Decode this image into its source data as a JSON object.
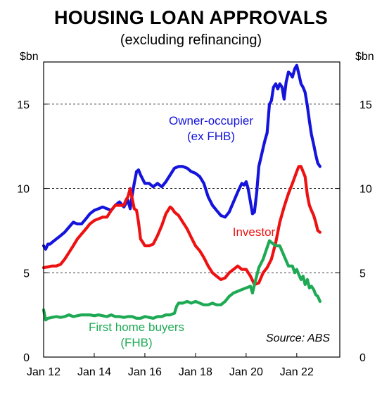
{
  "title": "HOUSING LOAN APPROVALS",
  "subtitle": "(excluding refinancing)",
  "unit_left": "$bn",
  "unit_right": "$bn",
  "source": "Source: ABS",
  "colors": {
    "owner": "#1414dc",
    "investor": "#ee1111",
    "fhb": "#1eaa55",
    "grid": "#000000"
  },
  "chart_data": {
    "type": "line",
    "title": "HOUSING LOAN APPROVALS",
    "subtitle": "(excluding refinancing)",
    "ylabel": "$bn",
    "ylim": [
      0,
      17.5
    ],
    "yticks": [
      0,
      5,
      10,
      15
    ],
    "xlim": [
      2012.0,
      2023.7
    ],
    "xticks": [
      {
        "label": "Jan 12",
        "x": 2012.0
      },
      {
        "label": "Jan 14",
        "x": 2014.0
      },
      {
        "label": "Jan 16",
        "x": 2016.0
      },
      {
        "label": "Jan 18",
        "x": 2018.0
      },
      {
        "label": "Jan 20",
        "x": 2020.0
      },
      {
        "label": "Jan 22",
        "x": 2022.0
      }
    ],
    "grid": "horizontal dashed",
    "series": [
      {
        "name": "Owner-occupier (ex FHB)",
        "label_lines": [
          "Owner-occupier",
          "(ex FHB)"
        ],
        "color": "#1414dc",
        "points": [
          [
            2012.0,
            6.6
          ],
          [
            2012.08,
            6.4
          ],
          [
            2012.17,
            6.7
          ],
          [
            2012.25,
            6.7
          ],
          [
            2012.33,
            6.8
          ],
          [
            2012.5,
            7.0
          ],
          [
            2012.67,
            7.2
          ],
          [
            2012.83,
            7.4
          ],
          [
            2013.0,
            7.7
          ],
          [
            2013.17,
            8.0
          ],
          [
            2013.33,
            7.9
          ],
          [
            2013.5,
            7.9
          ],
          [
            2013.67,
            8.2
          ],
          [
            2013.83,
            8.5
          ],
          [
            2014.0,
            8.7
          ],
          [
            2014.17,
            8.8
          ],
          [
            2014.33,
            8.9
          ],
          [
            2014.5,
            8.8
          ],
          [
            2014.67,
            8.7
          ],
          [
            2014.83,
            9.0
          ],
          [
            2015.0,
            9.2
          ],
          [
            2015.17,
            8.9
          ],
          [
            2015.33,
            9.3
          ],
          [
            2015.42,
            8.8
          ],
          [
            2015.5,
            9.6
          ],
          [
            2015.58,
            10.3
          ],
          [
            2015.67,
            11.0
          ],
          [
            2015.75,
            11.1
          ],
          [
            2015.83,
            10.8
          ],
          [
            2016.0,
            10.3
          ],
          [
            2016.17,
            10.3
          ],
          [
            2016.33,
            10.1
          ],
          [
            2016.5,
            10.3
          ],
          [
            2016.67,
            10.1
          ],
          [
            2016.83,
            10.4
          ],
          [
            2017.0,
            10.8
          ],
          [
            2017.17,
            11.2
          ],
          [
            2017.33,
            11.3
          ],
          [
            2017.5,
            11.3
          ],
          [
            2017.67,
            11.2
          ],
          [
            2017.83,
            11.0
          ],
          [
            2018.0,
            10.9
          ],
          [
            2018.17,
            10.7
          ],
          [
            2018.33,
            10.3
          ],
          [
            2018.5,
            9.5
          ],
          [
            2018.67,
            9.0
          ],
          [
            2018.83,
            8.7
          ],
          [
            2019.0,
            8.4
          ],
          [
            2019.17,
            8.3
          ],
          [
            2019.33,
            8.6
          ],
          [
            2019.5,
            9.2
          ],
          [
            2019.67,
            9.8
          ],
          [
            2019.83,
            10.3
          ],
          [
            2019.92,
            10.2
          ],
          [
            2020.0,
            10.4
          ],
          [
            2020.08,
            10.0
          ],
          [
            2020.17,
            9.2
          ],
          [
            2020.25,
            8.5
          ],
          [
            2020.33,
            8.6
          ],
          [
            2020.42,
            9.8
          ],
          [
            2020.5,
            11.3
          ],
          [
            2020.58,
            11.8
          ],
          [
            2020.67,
            12.4
          ],
          [
            2020.75,
            12.9
          ],
          [
            2020.83,
            13.3
          ],
          [
            2020.92,
            15.0
          ],
          [
            2021.0,
            15.2
          ],
          [
            2021.08,
            16.0
          ],
          [
            2021.17,
            16.2
          ],
          [
            2021.25,
            15.9
          ],
          [
            2021.33,
            16.2
          ],
          [
            2021.42,
            16.0
          ],
          [
            2021.5,
            15.3
          ],
          [
            2021.58,
            16.3
          ],
          [
            2021.67,
            16.9
          ],
          [
            2021.75,
            16.8
          ],
          [
            2021.83,
            16.6
          ],
          [
            2021.92,
            17.1
          ],
          [
            2022.0,
            17.3
          ],
          [
            2022.08,
            16.8
          ],
          [
            2022.17,
            16.2
          ],
          [
            2022.25,
            16.0
          ],
          [
            2022.33,
            15.7
          ],
          [
            2022.42,
            14.9
          ],
          [
            2022.5,
            14.0
          ],
          [
            2022.58,
            13.2
          ],
          [
            2022.67,
            12.6
          ],
          [
            2022.75,
            12.0
          ],
          [
            2022.83,
            11.5
          ],
          [
            2022.92,
            11.3
          ]
        ]
      },
      {
        "name": "Investor",
        "label_lines": [
          "Investor"
        ],
        "color": "#ee1111",
        "points": [
          [
            2012.0,
            5.3
          ],
          [
            2012.17,
            5.35
          ],
          [
            2012.33,
            5.4
          ],
          [
            2012.5,
            5.4
          ],
          [
            2012.67,
            5.5
          ],
          [
            2012.83,
            5.8
          ],
          [
            2013.0,
            6.2
          ],
          [
            2013.17,
            6.6
          ],
          [
            2013.33,
            7.0
          ],
          [
            2013.5,
            7.3
          ],
          [
            2013.67,
            7.6
          ],
          [
            2013.83,
            7.9
          ],
          [
            2014.0,
            8.1
          ],
          [
            2014.17,
            8.2
          ],
          [
            2014.33,
            8.3
          ],
          [
            2014.5,
            8.3
          ],
          [
            2014.67,
            8.7
          ],
          [
            2014.83,
            9.0
          ],
          [
            2015.0,
            9.0
          ],
          [
            2015.17,
            9.0
          ],
          [
            2015.25,
            9.3
          ],
          [
            2015.33,
            9.5
          ],
          [
            2015.42,
            10.0
          ],
          [
            2015.5,
            9.4
          ],
          [
            2015.58,
            8.8
          ],
          [
            2015.67,
            8.7
          ],
          [
            2015.75,
            8.0
          ],
          [
            2015.83,
            7.0
          ],
          [
            2015.92,
            6.8
          ],
          [
            2016.0,
            6.6
          ],
          [
            2016.17,
            6.6
          ],
          [
            2016.33,
            6.7
          ],
          [
            2016.5,
            7.2
          ],
          [
            2016.67,
            7.8
          ],
          [
            2016.83,
            8.5
          ],
          [
            2017.0,
            8.9
          ],
          [
            2017.08,
            8.8
          ],
          [
            2017.17,
            8.6
          ],
          [
            2017.33,
            8.4
          ],
          [
            2017.5,
            8.0
          ],
          [
            2017.67,
            7.6
          ],
          [
            2017.83,
            7.1
          ],
          [
            2018.0,
            6.6
          ],
          [
            2018.17,
            6.3
          ],
          [
            2018.33,
            5.9
          ],
          [
            2018.5,
            5.4
          ],
          [
            2018.67,
            5.0
          ],
          [
            2018.83,
            4.8
          ],
          [
            2019.0,
            4.6
          ],
          [
            2019.17,
            4.7
          ],
          [
            2019.33,
            5.0
          ],
          [
            2019.5,
            5.2
          ],
          [
            2019.67,
            5.4
          ],
          [
            2019.83,
            5.2
          ],
          [
            2020.0,
            5.2
          ],
          [
            2020.17,
            4.8
          ],
          [
            2020.33,
            4.3
          ],
          [
            2020.5,
            4.4
          ],
          [
            2020.67,
            5.0
          ],
          [
            2020.83,
            5.3
          ],
          [
            2021.0,
            5.8
          ],
          [
            2021.17,
            6.8
          ],
          [
            2021.33,
            8.0
          ],
          [
            2021.5,
            8.9
          ],
          [
            2021.67,
            9.7
          ],
          [
            2021.83,
            10.3
          ],
          [
            2022.0,
            11.0
          ],
          [
            2022.08,
            11.3
          ],
          [
            2022.17,
            11.3
          ],
          [
            2022.25,
            11.0
          ],
          [
            2022.33,
            10.7
          ],
          [
            2022.42,
            9.6
          ],
          [
            2022.5,
            9.0
          ],
          [
            2022.58,
            8.7
          ],
          [
            2022.67,
            8.4
          ],
          [
            2022.75,
            8.0
          ],
          [
            2022.83,
            7.5
          ],
          [
            2022.92,
            7.4
          ]
        ]
      },
      {
        "name": "First home buyers (FHB)",
        "label_lines": [
          "First home  buyers",
          "(FHB)"
        ],
        "color": "#1eaa55",
        "points": [
          [
            2012.0,
            2.8
          ],
          [
            2012.08,
            2.2
          ],
          [
            2012.17,
            2.3
          ],
          [
            2012.33,
            2.35
          ],
          [
            2012.5,
            2.4
          ],
          [
            2012.67,
            2.35
          ],
          [
            2012.83,
            2.4
          ],
          [
            2013.0,
            2.5
          ],
          [
            2013.17,
            2.4
          ],
          [
            2013.33,
            2.45
          ],
          [
            2013.5,
            2.5
          ],
          [
            2013.67,
            2.5
          ],
          [
            2013.83,
            2.5
          ],
          [
            2014.0,
            2.45
          ],
          [
            2014.17,
            2.5
          ],
          [
            2014.33,
            2.45
          ],
          [
            2014.5,
            2.4
          ],
          [
            2014.67,
            2.5
          ],
          [
            2014.83,
            2.4
          ],
          [
            2015.0,
            2.4
          ],
          [
            2015.17,
            2.35
          ],
          [
            2015.33,
            2.4
          ],
          [
            2015.5,
            2.4
          ],
          [
            2015.67,
            2.3
          ],
          [
            2015.83,
            2.3
          ],
          [
            2016.0,
            2.4
          ],
          [
            2016.17,
            2.35
          ],
          [
            2016.33,
            2.3
          ],
          [
            2016.5,
            2.4
          ],
          [
            2016.67,
            2.4
          ],
          [
            2016.83,
            2.5
          ],
          [
            2017.0,
            2.5
          ],
          [
            2017.17,
            2.6
          ],
          [
            2017.25,
            3.0
          ],
          [
            2017.33,
            3.2
          ],
          [
            2017.5,
            3.2
          ],
          [
            2017.67,
            3.3
          ],
          [
            2017.83,
            3.2
          ],
          [
            2018.0,
            3.3
          ],
          [
            2018.17,
            3.2
          ],
          [
            2018.33,
            3.1
          ],
          [
            2018.5,
            3.1
          ],
          [
            2018.67,
            3.2
          ],
          [
            2018.83,
            3.1
          ],
          [
            2019.0,
            3.1
          ],
          [
            2019.17,
            3.3
          ],
          [
            2019.33,
            3.6
          ],
          [
            2019.5,
            3.8
          ],
          [
            2019.67,
            3.9
          ],
          [
            2019.83,
            4.0
          ],
          [
            2020.0,
            4.1
          ],
          [
            2020.17,
            4.2
          ],
          [
            2020.25,
            3.8
          ],
          [
            2020.33,
            4.3
          ],
          [
            2020.5,
            5.3
          ],
          [
            2020.67,
            5.8
          ],
          [
            2020.83,
            6.5
          ],
          [
            2020.92,
            6.9
          ],
          [
            2021.0,
            6.8
          ],
          [
            2021.17,
            6.6
          ],
          [
            2021.33,
            6.6
          ],
          [
            2021.5,
            6.0
          ],
          [
            2021.67,
            5.4
          ],
          [
            2021.83,
            5.4
          ],
          [
            2021.92,
            5.0
          ],
          [
            2022.0,
            5.2
          ],
          [
            2022.08,
            4.9
          ],
          [
            2022.17,
            4.6
          ],
          [
            2022.25,
            4.8
          ],
          [
            2022.33,
            4.3
          ],
          [
            2022.42,
            4.6
          ],
          [
            2022.5,
            4.1
          ],
          [
            2022.58,
            4.2
          ],
          [
            2022.67,
            4.0
          ],
          [
            2022.75,
            3.7
          ],
          [
            2022.83,
            3.6
          ],
          [
            2022.92,
            3.3
          ]
        ]
      }
    ]
  }
}
